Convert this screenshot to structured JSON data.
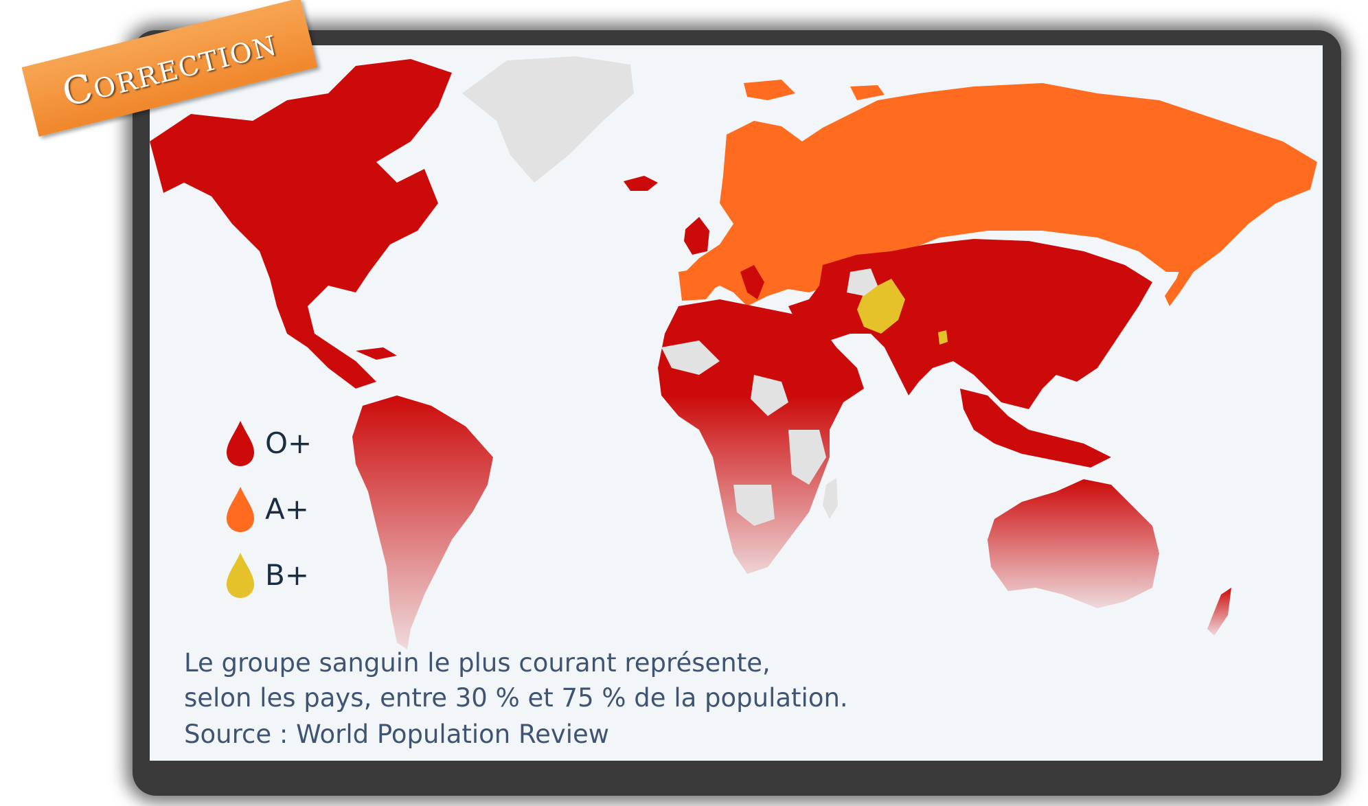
{
  "stamp": {
    "text": "Correction"
  },
  "legend": [
    {
      "label": "O+",
      "color": "#cc0a0a"
    },
    {
      "label": "A+",
      "color": "#ff6b1f"
    },
    {
      "label": "B+",
      "color": "#e6c22a"
    }
  ],
  "no_data_color": "#e2e2e2",
  "caption": {
    "line1": "Le groupe sanguin le plus courant représente,",
    "line2": "selon les pays, entre 30 % et 75 % de la population."
  },
  "source": "Source : World Population Review"
}
